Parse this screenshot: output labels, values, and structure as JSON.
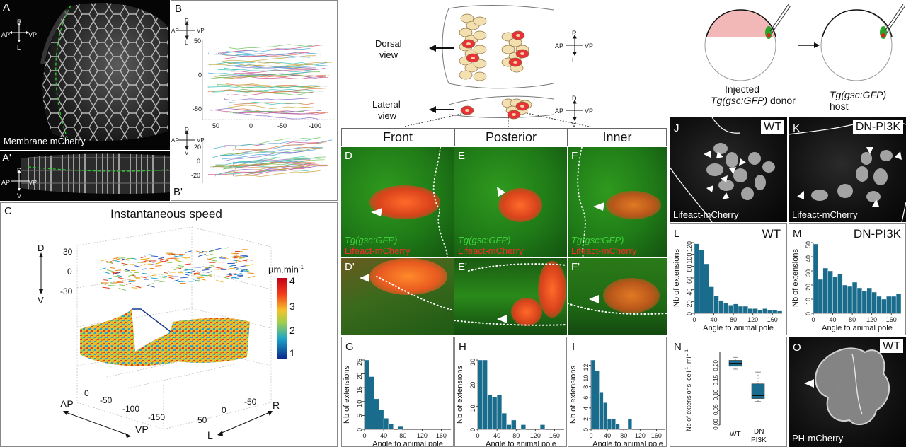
{
  "labels": {
    "A": "A",
    "A_prime": "A'",
    "B": "B",
    "B_prime": "B'",
    "C": "C",
    "D": "D",
    "D_prime": "D'",
    "E": "E",
    "E_prime": "E'",
    "F": "F",
    "F_prime": "F'",
    "G": "G",
    "H": "H",
    "I": "I",
    "J": "J",
    "K": "K",
    "L": "L",
    "M": "M",
    "N": "N",
    "O": "O"
  },
  "axes": {
    "R": "R",
    "L": "L",
    "AP": "AP",
    "VP": "VP",
    "D": "D",
    "V": "V"
  },
  "panelA": {
    "caption": "Membrane mCherry"
  },
  "panelB": {
    "y_ticks": [
      "50",
      "0",
      "-50"
    ],
    "x_ticks": [
      "50",
      "0",
      "-50",
      "-100"
    ],
    "bprime_y_ticks": [
      "20",
      "0",
      "-20"
    ]
  },
  "panelC": {
    "title": "Instantaneous speed",
    "unit": "µm.min",
    "unit_exp": "-1",
    "colorbar_ticks": [
      "4",
      "3",
      "2",
      "1"
    ],
    "d_ticks": [
      "30",
      "0",
      "-30"
    ],
    "ap_ticks": [
      "0",
      "-50",
      "-100",
      "-150"
    ],
    "r_ticks": [
      "50",
      "0",
      "-50"
    ]
  },
  "schematic": {
    "dorsal": "Dorsal\nview",
    "dorsal_l1": "Dorsal",
    "dorsal_l2": "view",
    "lateral_l1": "Lateral",
    "lateral_l2": "view"
  },
  "columns": {
    "front": "Front",
    "posterior": "Posterior",
    "inner": "Inner"
  },
  "micrographs": {
    "gfp": "Tg(gsc:GFP)",
    "lifeact": "Lifeact-mCherry"
  },
  "histograms": {
    "ylabel": "Nb of extensions",
    "xlabel": "Angle to animal pole",
    "G": {
      "yticks": [
        "0",
        "5",
        "10",
        "15",
        "20",
        "25"
      ],
      "xticks": [
        "0",
        "40",
        "80",
        "120",
        "160"
      ]
    },
    "H": {
      "yticks": [
        "0",
        "10",
        "20",
        "30"
      ],
      "xticks": [
        "0",
        "40",
        "80",
        "120",
        "160"
      ]
    },
    "I": {
      "yticks": [
        "0",
        "2",
        "4",
        "6",
        "8",
        "10",
        "12"
      ],
      "xticks": [
        "0",
        "40",
        "80",
        "120",
        "160"
      ]
    }
  },
  "transplant": {
    "donor_l1": "Injected",
    "donor_l2": "Tg(gsc:GFP)",
    "donor_l3": "donor",
    "host_l1": "Tg(gsc:GFP)",
    "host_l2": "host"
  },
  "panelJ": {
    "tag": "WT",
    "caption": "Lifeact-mCherry"
  },
  "panelK": {
    "tag": "DN-PI3K",
    "caption": "Lifeact-mCherry"
  },
  "panelL": {
    "tag": "WT",
    "yticks": [
      "0",
      "20",
      "40",
      "60",
      "80",
      "100",
      "120"
    ],
    "xticks": [
      "0",
      "40",
      "80",
      "120",
      "160"
    ]
  },
  "panelM": {
    "tag": "DN-PI3K",
    "yticks": [
      "0",
      "10",
      "20",
      "30",
      "40",
      "50"
    ],
    "xticks": [
      "0",
      "40",
      "80",
      "120",
      "160"
    ]
  },
  "panelN": {
    "ylabel": "Nb of extensions. cell",
    "ylabel_exp": "-1",
    "ylabel_tail": ". min",
    "ylabel_exp2": "-1",
    "yticks": [
      "0.00",
      "0.05",
      "0.10",
      "0.15",
      "0.20"
    ],
    "x1": "WT",
    "x2_l1": "DN",
    "x2_l2": "PI3K"
  },
  "panelO": {
    "tag": "WT",
    "caption": "PH-mCherry"
  },
  "colors": {
    "bar": "#1a6c8c",
    "green": "#3fd13c",
    "red": "#ff2a2a"
  },
  "chart_data": [
    {
      "type": "bar",
      "id": "G",
      "xlabel": "Angle to animal pole",
      "ylabel": "Nb of extensions",
      "ylim": [
        0,
        25
      ],
      "x": [
        5,
        15,
        25,
        35,
        45,
        55,
        65,
        75
      ],
      "values": [
        25,
        19,
        11,
        7,
        4,
        2,
        0,
        1
      ]
    },
    {
      "type": "bar",
      "id": "H",
      "xlabel": "Angle to animal pole",
      "ylabel": "Nb of extensions",
      "ylim": [
        0,
        30
      ],
      "x": [
        5,
        15,
        25,
        35,
        45,
        55,
        65,
        75,
        85,
        95,
        105,
        115,
        125,
        135
      ],
      "values": [
        30,
        30,
        15,
        14,
        15,
        7,
        2,
        4,
        0,
        2,
        0,
        0,
        0,
        2
      ]
    },
    {
      "type": "bar",
      "id": "I",
      "xlabel": "Angle to animal pole",
      "ylabel": "Nb of extensions",
      "ylim": [
        0,
        13
      ],
      "x": [
        5,
        15,
        25,
        35,
        45,
        55,
        65,
        75,
        85,
        95
      ],
      "values": [
        13,
        11,
        7,
        5,
        2,
        2,
        1,
        0,
        0,
        2
      ]
    },
    {
      "type": "bar",
      "id": "L",
      "xlabel": "Angle to animal pole",
      "ylabel": "Nb of extensions",
      "ylim": [
        0,
        120
      ],
      "x": [
        5,
        15,
        25,
        35,
        45,
        55,
        65,
        75,
        85,
        95,
        105,
        115,
        125,
        135,
        145,
        155,
        165,
        175
      ],
      "values": [
        118,
        108,
        84,
        45,
        30,
        22,
        17,
        14,
        16,
        12,
        12,
        8,
        8,
        6,
        8,
        5,
        6,
        4
      ]
    },
    {
      "type": "bar",
      "id": "M",
      "xlabel": "Angle to animal pole",
      "ylabel": "Nb of extensions",
      "ylim": [
        0,
        50
      ],
      "x": [
        5,
        15,
        25,
        35,
        45,
        55,
        65,
        75,
        85,
        95,
        105,
        115,
        125,
        135,
        145,
        155,
        165,
        175
      ],
      "values": [
        49,
        24,
        32,
        30,
        26,
        28,
        20,
        19,
        22,
        18,
        16,
        18,
        15,
        12,
        10,
        12,
        12,
        14
      ]
    },
    {
      "type": "box",
      "id": "N",
      "ylabel": "Nb of extensions. cell-1. min-1",
      "ylim": [
        0,
        0.25
      ],
      "categories": [
        "WT",
        "DN PI3K"
      ],
      "boxes": [
        {
          "min": 0.19,
          "q1": 0.2,
          "median": 0.21,
          "q3": 0.22,
          "max": 0.23
        },
        {
          "min": 0.08,
          "q1": 0.09,
          "median": 0.1,
          "q3": 0.14,
          "max": 0.18
        }
      ]
    }
  ]
}
